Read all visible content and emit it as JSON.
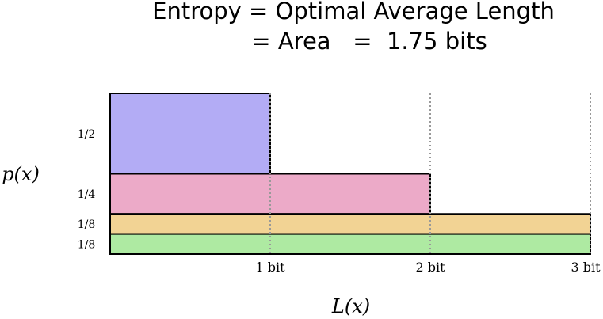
{
  "title": {
    "line1": "Entropy = Optimal Average Length",
    "line2": "= Area   =  1.75 bits"
  },
  "axes": {
    "ylabel": "p(x)",
    "xlabel": "L(x)"
  },
  "chart_data": {
    "type": "area",
    "title": "Entropy = Optimal Average Length = Area = 1.75 bits",
    "xlabel": "L(x)",
    "ylabel": "p(x)",
    "xlim": [
      0,
      3
    ],
    "ylim": [
      0,
      1
    ],
    "x_ticks": [
      {
        "value": 1,
        "label": "1 bit"
      },
      {
        "value": 2,
        "label": "2 bit"
      },
      {
        "value": 3,
        "label": "3 bit"
      }
    ],
    "blocks": [
      {
        "probability": 0.5,
        "prob_label": "1/2",
        "length_bits": 1,
        "color": "#b3acf5"
      },
      {
        "probability": 0.25,
        "prob_label": "1/4",
        "length_bits": 2,
        "color": "#ecaac8"
      },
      {
        "probability": 0.125,
        "prob_label": "1/8",
        "length_bits": 3,
        "color": "#f2d394"
      },
      {
        "probability": 0.125,
        "prob_label": "1/8",
        "length_bits": 3,
        "color": "#aeeaa2"
      }
    ]
  }
}
